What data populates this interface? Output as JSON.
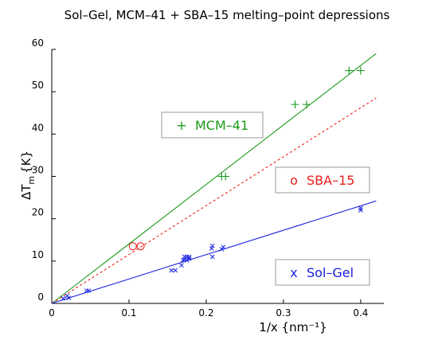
{
  "chart_data": {
    "type": "scatter",
    "title": "Sol–Gel, MCM–41 + SBA–15 melting–point depressions",
    "xlabel": "1/x {nm⁻¹}",
    "ylabel": "ΔT",
    "ylabel_sub": "m",
    "ylabel_unit": "{K}",
    "xlim": [
      0,
      0.43
    ],
    "ylim": [
      0,
      60
    ],
    "x_ticks": [
      0,
      0.1,
      0.2,
      0.3,
      0.4
    ],
    "x_tick_labels": [
      "0",
      "0.1",
      "0.2",
      "0.3",
      "0.4"
    ],
    "y_ticks": [
      0,
      10,
      20,
      30,
      40,
      50,
      60
    ],
    "y_tick_labels": [
      "0",
      "10",
      "20",
      "30",
      "40",
      "50",
      "60"
    ],
    "series": [
      {
        "name": "MCM–41",
        "marker_glyph": "+",
        "marker": "plus",
        "color": "#1a9a1a",
        "x": [
          0.22,
          0.225,
          0.315,
          0.33,
          0.385,
          0.4
        ],
        "y": [
          30,
          30,
          47,
          47,
          55,
          55
        ],
        "fit": {
          "x": [
            0,
            0.42
          ],
          "y": [
            0,
            59
          ],
          "style": "solid"
        }
      },
      {
        "name": "SBA–15",
        "marker_glyph": "o",
        "marker": "circle",
        "color": "#e8201a",
        "x": [
          0.105,
          0.115
        ],
        "y": [
          13.5,
          13.5
        ],
        "fit": {
          "x": [
            0,
            0.42
          ],
          "y": [
            0,
            48.5
          ],
          "style": "dotted"
        }
      },
      {
        "name": "Sol–Gel",
        "marker_glyph": "x",
        "marker": "cross",
        "color": "#1a22e0",
        "x": [
          0.015,
          0.02,
          0.022,
          0.045,
          0.048,
          0.155,
          0.16,
          0.168,
          0.17,
          0.172,
          0.172,
          0.175,
          0.175,
          0.178,
          0.178,
          0.207,
          0.208,
          0.208,
          0.22,
          0.222,
          0.4,
          0.4
        ],
        "y": [
          1.2,
          1.8,
          1.3,
          3.0,
          3.0,
          7.8,
          7.8,
          9.0,
          10.2,
          11.0,
          10.4,
          11.0,
          10.2,
          10.6,
          11.0,
          13.0,
          13.6,
          11.0,
          12.8,
          13.3,
          22.5,
          22.0
        ],
        "fit": {
          "x": [
            0,
            0.42
          ],
          "y": [
            0,
            24.2
          ],
          "style": "solid"
        }
      }
    ],
    "legend": [
      {
        "glyph": "+",
        "label": "MCM–41",
        "color": "#1a9a1a"
      },
      {
        "glyph": "o",
        "label": "SBA–15",
        "color": "#e8201a"
      },
      {
        "glyph": "x",
        "label": "Sol–Gel",
        "color": "#1a22e0"
      }
    ]
  }
}
